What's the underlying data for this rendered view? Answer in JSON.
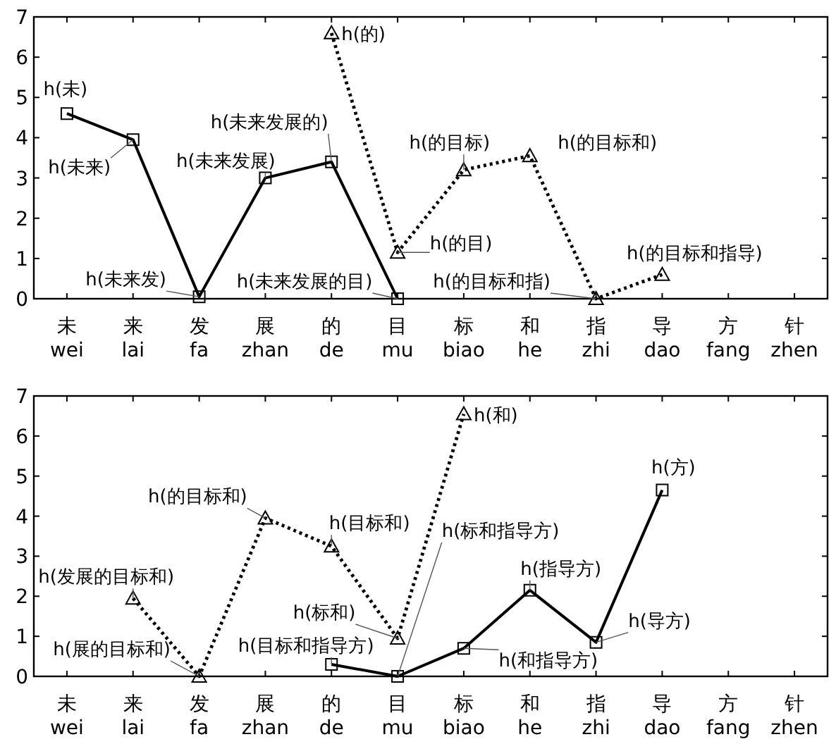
{
  "chart_data": [
    {
      "type": "line",
      "ylim": [
        0,
        7
      ],
      "yticks": [
        0,
        1,
        2,
        3,
        4,
        5,
        6,
        7
      ],
      "categories": [
        "未 wei",
        "来 lai",
        "发 fa",
        "展 zhan",
        "的 de",
        "目 mu",
        "标 biao",
        "和 he",
        "指 zhi",
        "导 dao",
        "方 fang",
        "针 zhen"
      ],
      "series": [
        {
          "color": "#000000",
          "marker": "square",
          "line_style": "solid",
          "values": [
            4.6,
            3.95,
            0.05,
            3.0,
            3.4,
            0.0,
            null,
            null,
            null,
            null,
            null,
            null
          ]
        },
        {
          "color": "#000000",
          "marker": "triangle",
          "line_style": "dotted",
          "values": [
            null,
            null,
            null,
            null,
            6.6,
            1.15,
            3.2,
            3.55,
            0.0,
            0.6,
            null,
            null
          ]
        }
      ],
      "annotations": [
        {
          "text": "h(未)",
          "x": "未 wei",
          "y": 4.6
        },
        {
          "text": "h(未来)",
          "x": "来 lai",
          "y": 3.95
        },
        {
          "text": "h(未来发)",
          "x": "发 fa",
          "y": 0.05
        },
        {
          "text": "h(未来发展)",
          "x": "展 zhan",
          "y": 3.0
        },
        {
          "text": "h(未来发展的)",
          "x": "的 de",
          "y": 3.4
        },
        {
          "text": "h(未来发展的目)",
          "x": "目 mu",
          "y": 0.0
        },
        {
          "text": "h(的)",
          "x": "的 de",
          "y": 6.6
        },
        {
          "text": "h(的目)",
          "x": "目 mu",
          "y": 1.15
        },
        {
          "text": "h(的目标)",
          "x": "标 biao",
          "y": 3.2
        },
        {
          "text": "h(的目标和)",
          "x": "和 he",
          "y": 3.55
        },
        {
          "text": "h(的目标和指)",
          "x": "指 zhi",
          "y": 0.0
        },
        {
          "text": "h(的目标和指导)",
          "x": "导 dao",
          "y": 0.6
        }
      ]
    },
    {
      "type": "line",
      "ylim": [
        0,
        7
      ],
      "yticks": [
        0,
        1,
        2,
        3,
        4,
        5,
        6,
        7
      ],
      "categories": [
        "未 wei",
        "来 lai",
        "发 fa",
        "展 zhan",
        "的 de",
        "目 mu",
        "标 biao",
        "和 he",
        "指 zhi",
        "导 dao",
        "方 fang",
        "针 zhen"
      ],
      "series": [
        {
          "color": "#000000",
          "marker": "triangle",
          "line_style": "dotted",
          "values": [
            null,
            1.95,
            0.0,
            3.95,
            3.25,
            0.95,
            6.55,
            null,
            null,
            null,
            null,
            null
          ]
        },
        {
          "color": "#000000",
          "marker": "square",
          "line_style": "solid",
          "values": [
            null,
            null,
            null,
            null,
            0.3,
            0.0,
            0.7,
            2.15,
            0.85,
            4.65,
            null,
            null
          ]
        }
      ],
      "annotations": [
        {
          "text": "h(发展的目标和)",
          "x": "来 lai",
          "y": 1.95
        },
        {
          "text": "h(展的目标和)",
          "x": "发 fa",
          "y": 0.0
        },
        {
          "text": "h(的目标和)",
          "x": "展 zhan",
          "y": 3.95
        },
        {
          "text": "h(目标和)",
          "x": "的 de",
          "y": 3.25
        },
        {
          "text": "h(标和)",
          "x": "目 mu",
          "y": 0.95
        },
        {
          "text": "h(和)",
          "x": "标 biao",
          "y": 6.55
        },
        {
          "text": "h(目标和指导方)",
          "x": "的 de",
          "y": 0.3
        },
        {
          "text": "h(标和指导方)",
          "x": "目 mu",
          "y": 0.0
        },
        {
          "text": "h(和指导方)",
          "x": "标 biao",
          "y": 0.7
        },
        {
          "text": "h(指导方)",
          "x": "和 he",
          "y": 2.15
        },
        {
          "text": "h(导方)",
          "x": "指 zhi",
          "y": 0.85
        },
        {
          "text": "h(方)",
          "x": "导 dao",
          "y": 4.65
        }
      ]
    }
  ]
}
